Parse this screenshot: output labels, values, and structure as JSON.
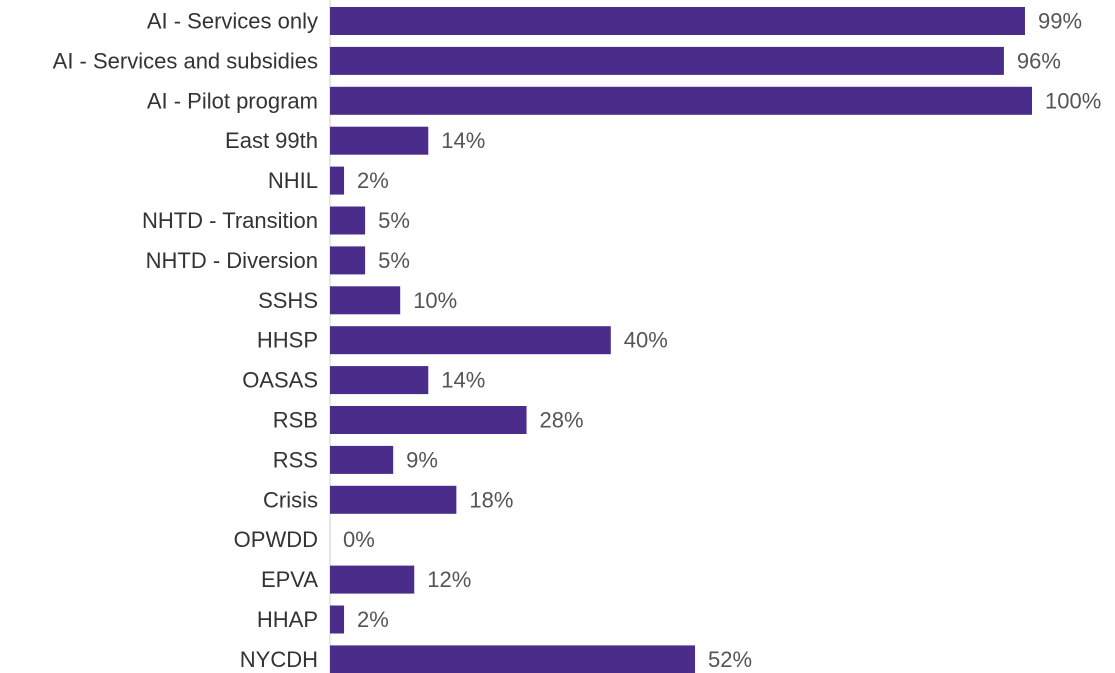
{
  "chart_data": {
    "type": "bar",
    "orientation": "horizontal",
    "categories": [
      "AI - Services only",
      "AI - Services and subsidies",
      "AI - Pilot program",
      "East 99th",
      "NHIL",
      "NHTD - Transition",
      "NHTD - Diversion",
      "SSHS",
      "HHSP",
      "OASAS",
      "RSB",
      "RSS",
      "Crisis",
      "OPWDD",
      "EPVA",
      "HHAP",
      "NYCDH"
    ],
    "values": [
      99,
      96,
      100,
      14,
      2,
      5,
      5,
      10,
      40,
      14,
      28,
      9,
      18,
      0,
      12,
      2,
      52
    ],
    "value_labels": [
      "99%",
      "96%",
      "100%",
      "14%",
      "2%",
      "5%",
      "5%",
      "10%",
      "40%",
      "14%",
      "28%",
      "9%",
      "18%",
      "0%",
      "12%",
      "2%",
      "52%"
    ],
    "xlim": [
      0,
      100
    ],
    "grid": false,
    "legend": "none"
  },
  "colors": {
    "bar": "#4a2c8a",
    "category_text": "#333333",
    "value_text": "#555555"
  }
}
